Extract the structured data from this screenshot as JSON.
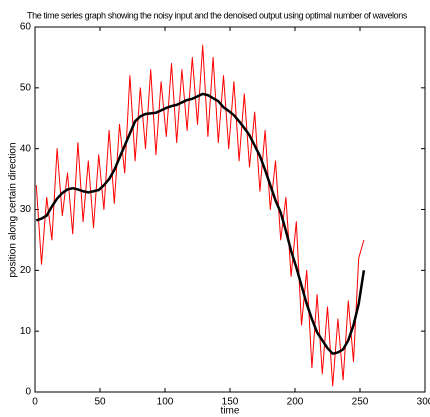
{
  "chart_data": {
    "type": "line",
    "title": "The time series graph showing the noisy input and the denoised output using optimal number of wavelons",
    "xlabel": "time",
    "ylabel": "position along certain direction",
    "x": [
      1,
      5,
      9,
      13,
      17,
      21,
      25,
      29,
      33,
      37,
      41,
      45,
      49,
      53,
      57,
      61,
      65,
      69,
      73,
      77,
      81,
      85,
      89,
      93,
      97,
      101,
      105,
      109,
      113,
      117,
      121,
      125,
      129,
      133,
      137,
      141,
      145,
      149,
      153,
      157,
      161,
      165,
      169,
      173,
      177,
      181,
      185,
      189,
      193,
      197,
      201,
      205,
      209,
      213,
      217,
      221,
      225,
      229,
      233,
      237,
      241,
      245,
      249,
      253
    ],
    "series": [
      {
        "color": "#ff0000",
        "width": 1,
        "values": [
          34,
          21,
          32,
          25,
          40,
          29,
          36,
          26,
          41,
          28,
          38,
          27,
          39,
          30,
          43,
          31,
          44,
          36,
          52,
          38,
          50,
          40,
          53,
          39,
          51,
          42,
          54,
          41,
          53,
          43,
          55,
          44,
          57,
          42,
          55,
          41,
          52,
          40,
          51,
          38,
          49,
          37,
          46,
          33,
          43,
          30,
          38,
          25,
          32,
          19,
          28,
          11,
          20,
          4,
          16,
          3,
          14,
          1,
          12,
          2,
          15,
          5,
          22,
          25
        ]
      },
      {
        "color": "#000000",
        "width": 2.5,
        "values": [
          28.2,
          28.5,
          29,
          30.5,
          31.8,
          32.7,
          33.3,
          33.5,
          33.3,
          33,
          32.8,
          33,
          33.2,
          34,
          35,
          36.5,
          38.5,
          40.5,
          42.5,
          44.5,
          45.3,
          45.7,
          45.8,
          45.9,
          46.3,
          46.7,
          47,
          47.2,
          47.6,
          48,
          48.2,
          48.6,
          49,
          48.8,
          48.3,
          47.8,
          46.8,
          46.2,
          45.5,
          44.5,
          43.4,
          42.2,
          40.5,
          38.8,
          36.5,
          34,
          31.5,
          29.5,
          26.5,
          23.2,
          20.5,
          17.5,
          14.5,
          12,
          9.8,
          8.5,
          7.2,
          6.3,
          6.5,
          7,
          8.5,
          11,
          14.5,
          20
        ]
      }
    ],
    "xlim": [
      0,
      300
    ],
    "xticks": [
      0,
      50,
      100,
      150,
      200,
      250,
      300
    ],
    "ylim": [
      0,
      60
    ],
    "yticks": [
      0,
      10,
      20,
      30,
      40,
      50,
      60
    ]
  }
}
